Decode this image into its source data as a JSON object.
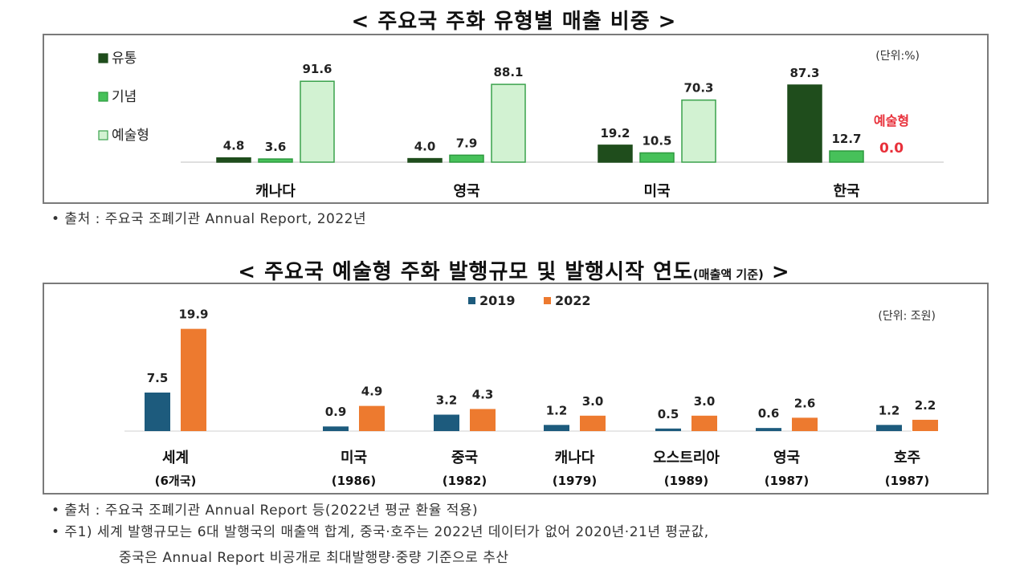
{
  "colors": {
    "dist": "#1f4d1c",
    "comm": "#47c15a",
    "art": "#d2f2d2",
    "art_stroke": "#3aa24c",
    "y2019": "#1d5b7d",
    "y2022": "#ed7a2f",
    "highlight": "#e8303a"
  },
  "chart1": {
    "title": "< 주요국 주화 유형별 매출 비중 >",
    "unit": "(단위:%)",
    "source": "• 출처 : 주요국 조폐기관 Annual Report, 2022년"
  },
  "chart2": {
    "title_main": "< 주요국 예술형 주화 발행규모 및 발행시작 연도",
    "title_small": "(매출액 기준)",
    "title_end": " >",
    "unit": "(단위: 조원)",
    "source": "• 출처 : 주요국 조폐기관 Annual Report 등(2022년 평균 환율 적용)",
    "note_line1": "• 주1) 세계 발행규모는 6대 발행국의 매출액 합계, 중국·호주는 2022년 데이터가 없어 2020년·21년 평균값,",
    "note_line2": "중국은 Annual Report 비공개로 최대발행량·중량 기준으로 추산"
  },
  "chart_data": [
    {
      "type": "bar",
      "title": "< 주요국 주화 유형별 매출 비중 >",
      "unit": "(단위:%)",
      "categories": [
        "캐나다",
        "영국",
        "미국",
        "한국"
      ],
      "series": [
        {
          "name": "유통",
          "values": [
            4.8,
            4.0,
            19.2,
            87.3
          ]
        },
        {
          "name": "기념",
          "values": [
            3.6,
            7.9,
            10.5,
            12.7
          ]
        },
        {
          "name": "예술형",
          "values": [
            91.6,
            88.1,
            70.3,
            0.0
          ]
        }
      ],
      "value_labels": [
        [
          "4.8",
          "4.0",
          "19.2",
          "87.3"
        ],
        [
          "3.6",
          "7.9",
          "10.5",
          "12.7"
        ],
        [
          "91.6",
          "88.1",
          "70.3",
          "예술형 0.0"
        ]
      ],
      "ylim": [
        0,
        100
      ],
      "grid": false,
      "legend": "left"
    },
    {
      "type": "bar",
      "title": "< 주요국 예술형 주화 발행규모 및 발행시작 연도(매출액 기준) >",
      "unit": "(단위: 조원)",
      "categories": [
        "세계",
        "미국",
        "중국",
        "캐나다",
        "오스트리아",
        "영국",
        "호주"
      ],
      "sublabels": [
        "(6개국)",
        "(1986)",
        "(1982)",
        "(1979)",
        "(1989)",
        "(1987)",
        "(1987)"
      ],
      "series": [
        {
          "name": "2019",
          "values": [
            7.5,
            0.9,
            3.2,
            1.2,
            0.5,
            0.6,
            1.2
          ]
        },
        {
          "name": "2022",
          "values": [
            19.9,
            4.9,
            4.3,
            3.0,
            3.0,
            2.6,
            2.2
          ]
        }
      ],
      "value_labels": [
        [
          "7.5",
          "0.9",
          "3.2",
          "1.2",
          "0.5",
          "0.6",
          "1.2"
        ],
        [
          "19.9",
          "4.9",
          "4.3",
          "3.0",
          "3.0",
          "2.6",
          "2.2"
        ]
      ],
      "grid": false,
      "legend": "top-center"
    }
  ]
}
